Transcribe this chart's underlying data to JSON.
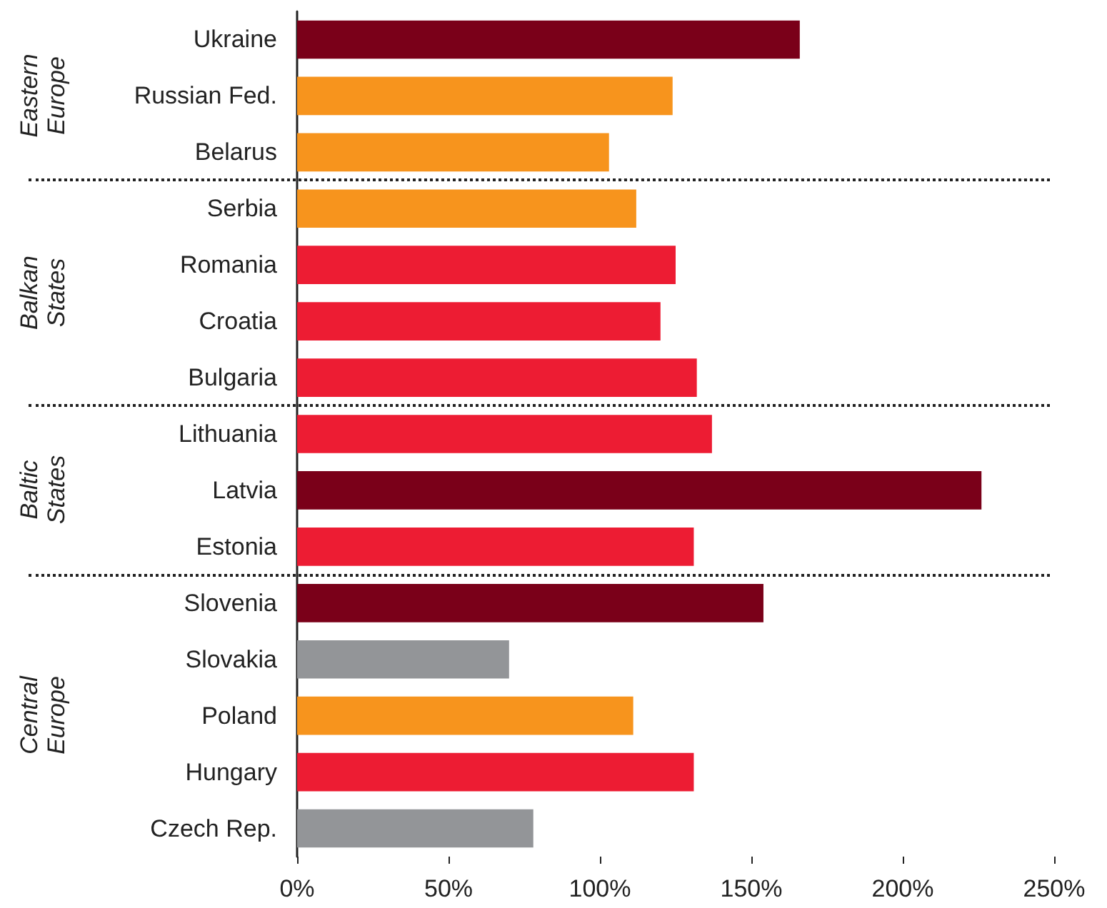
{
  "chart_data": {
    "type": "bar",
    "orientation": "horizontal",
    "categories": [
      "Ukraine",
      "Russian Fed.",
      "Belarus",
      "Serbia",
      "Romania",
      "Croatia",
      "Bulgaria",
      "Lithuania",
      "Latvia",
      "Estonia",
      "Slovenia",
      "Slovakia",
      "Poland",
      "Hungary",
      "Czech Rep."
    ],
    "values": [
      166,
      124,
      103,
      112,
      125,
      120,
      132,
      137,
      226,
      131,
      154,
      70,
      111,
      131,
      78
    ],
    "colors": [
      "#7a0019",
      "#f7941d",
      "#f7941d",
      "#f7941d",
      "#ed1c33",
      "#ed1c33",
      "#ed1c33",
      "#ed1c33",
      "#7a0019",
      "#ed1c33",
      "#7a0019",
      "#939598",
      "#f7941d",
      "#ed1c33",
      "#939598"
    ],
    "xlim": [
      0,
      250
    ],
    "xticks": [
      {
        "value": 0,
        "label": "0%"
      },
      {
        "value": 50,
        "label": "50%"
      },
      {
        "value": 100,
        "label": "100%"
      },
      {
        "value": 150,
        "label": "150%"
      },
      {
        "value": 200,
        "label": "200%"
      },
      {
        "value": 250,
        "label": "250%"
      }
    ],
    "annotations": [
      "Eastern Europe",
      "Balkan States",
      "Baltic States",
      "Central Europe"
    ],
    "grid": false
  }
}
